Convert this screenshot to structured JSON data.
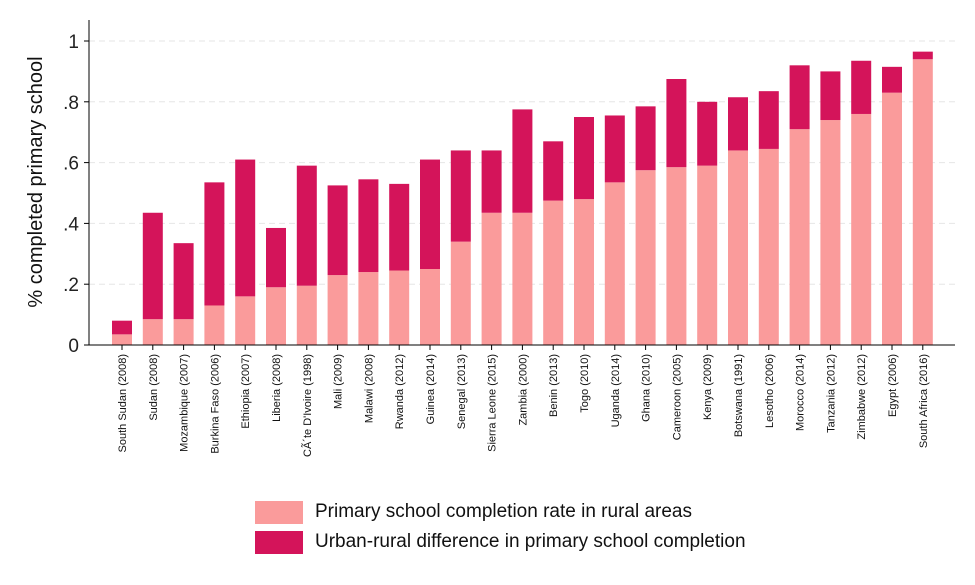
{
  "chart_data": {
    "type": "bar",
    "stacked": true,
    "title": "",
    "xlabel": "",
    "ylabel": "% completed primary school",
    "ylim": [
      0,
      1
    ],
    "yticks": [
      0,
      0.2,
      0.4,
      0.6,
      0.8,
      1
    ],
    "ytick_labels": [
      "0",
      ".2",
      ".4",
      ".6",
      ".8",
      "1"
    ],
    "grid": true,
    "legend_position": "bottom",
    "categories": [
      "South Sudan (2008)",
      "Sudan (2008)",
      "Mozambique (2007)",
      "Burkina Faso (2006)",
      "Ethiopia (2007)",
      "Liberia (2008)",
      "CÃ´te D'Ivoire (1998)",
      "Mali (2009)",
      "Malawi (2008)",
      "Rwanda (2012)",
      "Guinea (2014)",
      "Senegal (2013)",
      "Sierra Leone (2015)",
      "Zambia (2000)",
      "Benin (2013)",
      "Togo (2010)",
      "Uganda (2014)",
      "Ghana (2010)",
      "Cameroon (2005)",
      "Kenya (2009)",
      "Botswana (1991)",
      "Lesotho (2006)",
      "Morocco (2014)",
      "Tanzania (2012)",
      "Zimbabwe (2012)",
      "Egypt (2006)",
      "South Africa (2016)"
    ],
    "series": [
      {
        "name": "Primary school completion rate in rural areas",
        "color": "#fa9b9b",
        "values": [
          0.035,
          0.085,
          0.085,
          0.13,
          0.16,
          0.19,
          0.195,
          0.23,
          0.24,
          0.245,
          0.25,
          0.34,
          0.435,
          0.435,
          0.475,
          0.48,
          0.535,
          0.575,
          0.585,
          0.59,
          0.64,
          0.645,
          0.71,
          0.74,
          0.76,
          0.83,
          0.94
        ]
      },
      {
        "name": "Urban-rural difference in primary school completion",
        "color": "#d4145a",
        "values": [
          0.045,
          0.35,
          0.25,
          0.405,
          0.45,
          0.195,
          0.395,
          0.295,
          0.305,
          0.285,
          0.36,
          0.3,
          0.205,
          0.34,
          0.195,
          0.27,
          0.22,
          0.21,
          0.29,
          0.21,
          0.175,
          0.19,
          0.21,
          0.16,
          0.175,
          0.085,
          0.025
        ]
      }
    ]
  }
}
